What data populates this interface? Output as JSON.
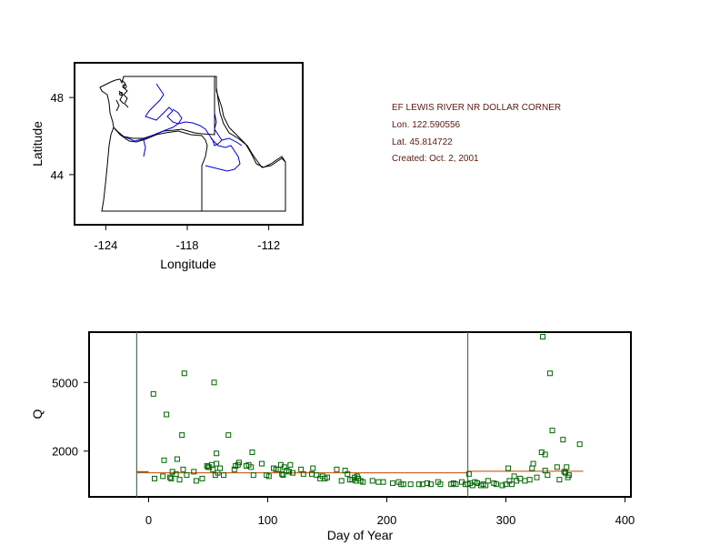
{
  "info": {
    "station": "EF LEWIS RIVER NR DOLLAR CORNER",
    "lon": "Lon. 122.590556",
    "lat": "Lat. 45.814722",
    "created": "Created:   Oct. 2, 2001",
    "text_color": "#5a1a10"
  },
  "chart_data": [
    {
      "type": "map",
      "xlabel": "Longitude",
      "ylabel": "Latitude",
      "xticks": [
        "-124",
        "-118",
        "-112"
      ],
      "xtick_values": [
        -124,
        -118,
        -112
      ],
      "yticks": [
        "48",
        "44"
      ],
      "ytick_values": [
        48,
        44
      ],
      "xlim": [
        -126.3,
        -109.5
      ],
      "ylim": [
        41.4,
        49.8
      ],
      "boundary_color": "#000000",
      "river_color": "#0000cc"
    },
    {
      "type": "scatter",
      "xlabel": "Day of Year",
      "ylabel": "Q",
      "xticks": [
        "0",
        "100",
        "200",
        "300",
        "400"
      ],
      "xtick_values": [
        0,
        100,
        200,
        300,
        400
      ],
      "yticks": [
        "5000",
        "2000"
      ],
      "ytick_values": [
        5000,
        2000
      ],
      "xlim": [
        -50,
        405
      ],
      "ylim": [
        0,
        7200
      ],
      "marker": "open-square",
      "point_color": "#006400",
      "vlines": [
        -10,
        268
      ],
      "vline_color": "#556b55",
      "hlines": [
        {
          "x": [
            -10,
            0
          ],
          "y": 1100,
          "color": "#006400"
        },
        {
          "x": [
            -10,
            268
          ],
          "y": 1050,
          "color": "#cc4400"
        },
        {
          "x": [
            268,
            365
          ],
          "y": 1120,
          "color": "#cc4400"
        }
      ],
      "points": [
        [
          4,
          4500
        ],
        [
          5,
          800
        ],
        [
          12,
          900
        ],
        [
          13,
          1600
        ],
        [
          15,
          3600
        ],
        [
          18,
          850
        ],
        [
          19,
          800
        ],
        [
          20,
          1100
        ],
        [
          23,
          1000
        ],
        [
          24,
          1650
        ],
        [
          26,
          750
        ],
        [
          28,
          2700
        ],
        [
          29,
          1200
        ],
        [
          30,
          5400
        ],
        [
          32,
          950
        ],
        [
          38,
          1100
        ],
        [
          40,
          700
        ],
        [
          45,
          800
        ],
        [
          49,
          1350
        ],
        [
          50,
          1300
        ],
        [
          51,
          1300
        ],
        [
          53,
          1400
        ],
        [
          54,
          1200
        ],
        [
          55,
          5000
        ],
        [
          56,
          950
        ],
        [
          57,
          1450
        ],
        [
          57,
          1900
        ],
        [
          58,
          1050
        ],
        [
          60,
          1250
        ],
        [
          63,
          950
        ],
        [
          67,
          2700
        ],
        [
          72,
          1200
        ],
        [
          73,
          1350
        ],
        [
          75,
          1400
        ],
        [
          76,
          1500
        ],
        [
          82,
          1350
        ],
        [
          84,
          1400
        ],
        [
          86,
          1300
        ],
        [
          87,
          1950
        ],
        [
          88,
          950
        ],
        [
          95,
          1450
        ],
        [
          99,
          950
        ],
        [
          101,
          900
        ],
        [
          105,
          1250
        ],
        [
          107,
          1200
        ],
        [
          109,
          1200
        ],
        [
          111,
          1400
        ],
        [
          112,
          1000
        ],
        [
          113,
          950
        ],
        [
          114,
          1300
        ],
        [
          116,
          1150
        ],
        [
          118,
          1100
        ],
        [
          119,
          1400
        ],
        [
          121,
          1050
        ],
        [
          128,
          1200
        ],
        [
          130,
          1000
        ],
        [
          137,
          1000
        ],
        [
          138,
          1250
        ],
        [
          141,
          950
        ],
        [
          144,
          800
        ],
        [
          146,
          900
        ],
        [
          148,
          800
        ],
        [
          150,
          850
        ],
        [
          158,
          1200
        ],
        [
          162,
          700
        ],
        [
          165,
          1150
        ],
        [
          167,
          1000
        ],
        [
          169,
          750
        ],
        [
          171,
          750
        ],
        [
          173,
          850
        ],
        [
          174,
          700
        ],
        [
          175,
          900
        ],
        [
          176,
          800
        ],
        [
          178,
          700
        ],
        [
          180,
          650
        ],
        [
          188,
          700
        ],
        [
          193,
          650
        ],
        [
          197,
          650
        ],
        [
          205,
          600
        ],
        [
          210,
          650
        ],
        [
          212,
          550
        ],
        [
          214,
          550
        ],
        [
          220,
          550
        ],
        [
          227,
          550
        ],
        [
          230,
          550
        ],
        [
          234,
          600
        ],
        [
          237,
          550
        ],
        [
          243,
          650
        ],
        [
          245,
          550
        ],
        [
          254,
          550
        ],
        [
          256,
          600
        ],
        [
          258,
          550
        ],
        [
          263,
          650
        ],
        [
          266,
          550
        ],
        [
          268,
          550
        ],
        [
          269,
          1000
        ],
        [
          270,
          600
        ],
        [
          272,
          500
        ],
        [
          274,
          650
        ],
        [
          276,
          600
        ],
        [
          279,
          500
        ],
        [
          281,
          550
        ],
        [
          283,
          500
        ],
        [
          285,
          700
        ],
        [
          290,
          600
        ],
        [
          292,
          550
        ],
        [
          297,
          500
        ],
        [
          300,
          550
        ],
        [
          302,
          1250
        ],
        [
          303,
          700
        ],
        [
          305,
          550
        ],
        [
          307,
          900
        ],
        [
          309,
          700
        ],
        [
          312,
          800
        ],
        [
          316,
          700
        ],
        [
          320,
          750
        ],
        [
          322,
          1250
        ],
        [
          323,
          1450
        ],
        [
          326,
          850
        ],
        [
          330,
          1950
        ],
        [
          331,
          7000
        ],
        [
          333,
          1850
        ],
        [
          333,
          1150
        ],
        [
          335,
          950
        ],
        [
          337,
          5400
        ],
        [
          339,
          2900
        ],
        [
          343,
          1300
        ],
        [
          345,
          750
        ],
        [
          348,
          2500
        ],
        [
          349,
          1100
        ],
        [
          350,
          1050
        ],
        [
          351,
          1300
        ],
        [
          352,
          850
        ],
        [
          353,
          950
        ],
        [
          362,
          2300
        ]
      ]
    }
  ]
}
